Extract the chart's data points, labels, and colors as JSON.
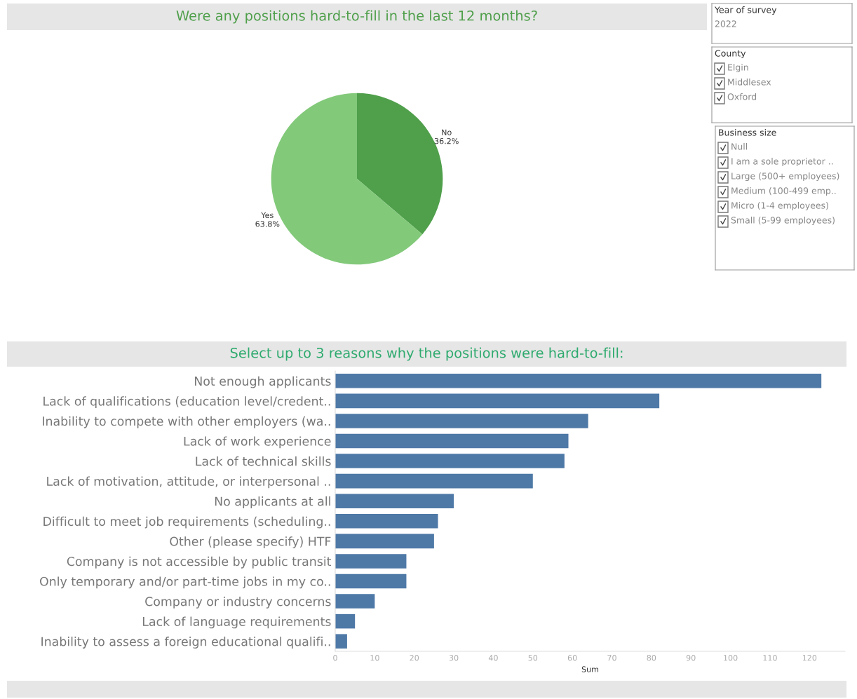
{
  "chart_data": [
    {
      "type": "pie",
      "title": "Were any positions hard-to-fill in the last 12 months?",
      "categories": [
        "No",
        "Yes"
      ],
      "values": [
        36.2,
        63.8
      ],
      "colors": [
        "#4f9f4b",
        "#82c97a"
      ],
      "value_labels": [
        "36.2%",
        "63.8%"
      ]
    },
    {
      "type": "other",
      "title": "Year of survey",
      "annotations": [
        "2022"
      ]
    },
    {
      "type": "other",
      "title": "County",
      "categories": [
        "Elgin",
        "Middlesex",
        "Oxford"
      ]
    },
    {
      "type": "other",
      "title": "Business size",
      "categories": [
        "Null",
        "I am a sole proprietor ..",
        "Large (500+ employees)",
        "Medium (100-499 emp..",
        "Micro (1-4 employees)",
        "Small (5-99 employees)"
      ]
    },
    {
      "type": "bar",
      "orientation": "horizontal",
      "title": "Select up to 3 reasons why the positions were hard-to-fill:",
      "xlabel": "Sum",
      "color": "#4e79a7",
      "categories": [
        "Not enough applicants",
        "Lack of qualifications (education level/credent..",
        "Inability to compete with other employers (wa..",
        "Lack of work experience",
        "Lack of technical skills",
        "Lack of motivation, attitude, or interpersonal ..",
        "No applicants at all",
        "Difficult to meet job requirements (scheduling..",
        "Other (please specify) HTF",
        "Company is not accessible by public transit",
        "Only temporary and/or part-time jobs in my co..",
        "Company or industry concerns",
        "Lack of language requirements",
        "Inability to assess a foreign educational qualifi.."
      ],
      "values": [
        123,
        82,
        64,
        59,
        58,
        50,
        30,
        26,
        25,
        18,
        18,
        10,
        5,
        3
      ],
      "xlim": [
        0,
        129
      ],
      "xticks": [
        0,
        10,
        20,
        30,
        40,
        50,
        60,
        70,
        80,
        90,
        100,
        110,
        120
      ],
      "grid": false
    }
  ]
}
